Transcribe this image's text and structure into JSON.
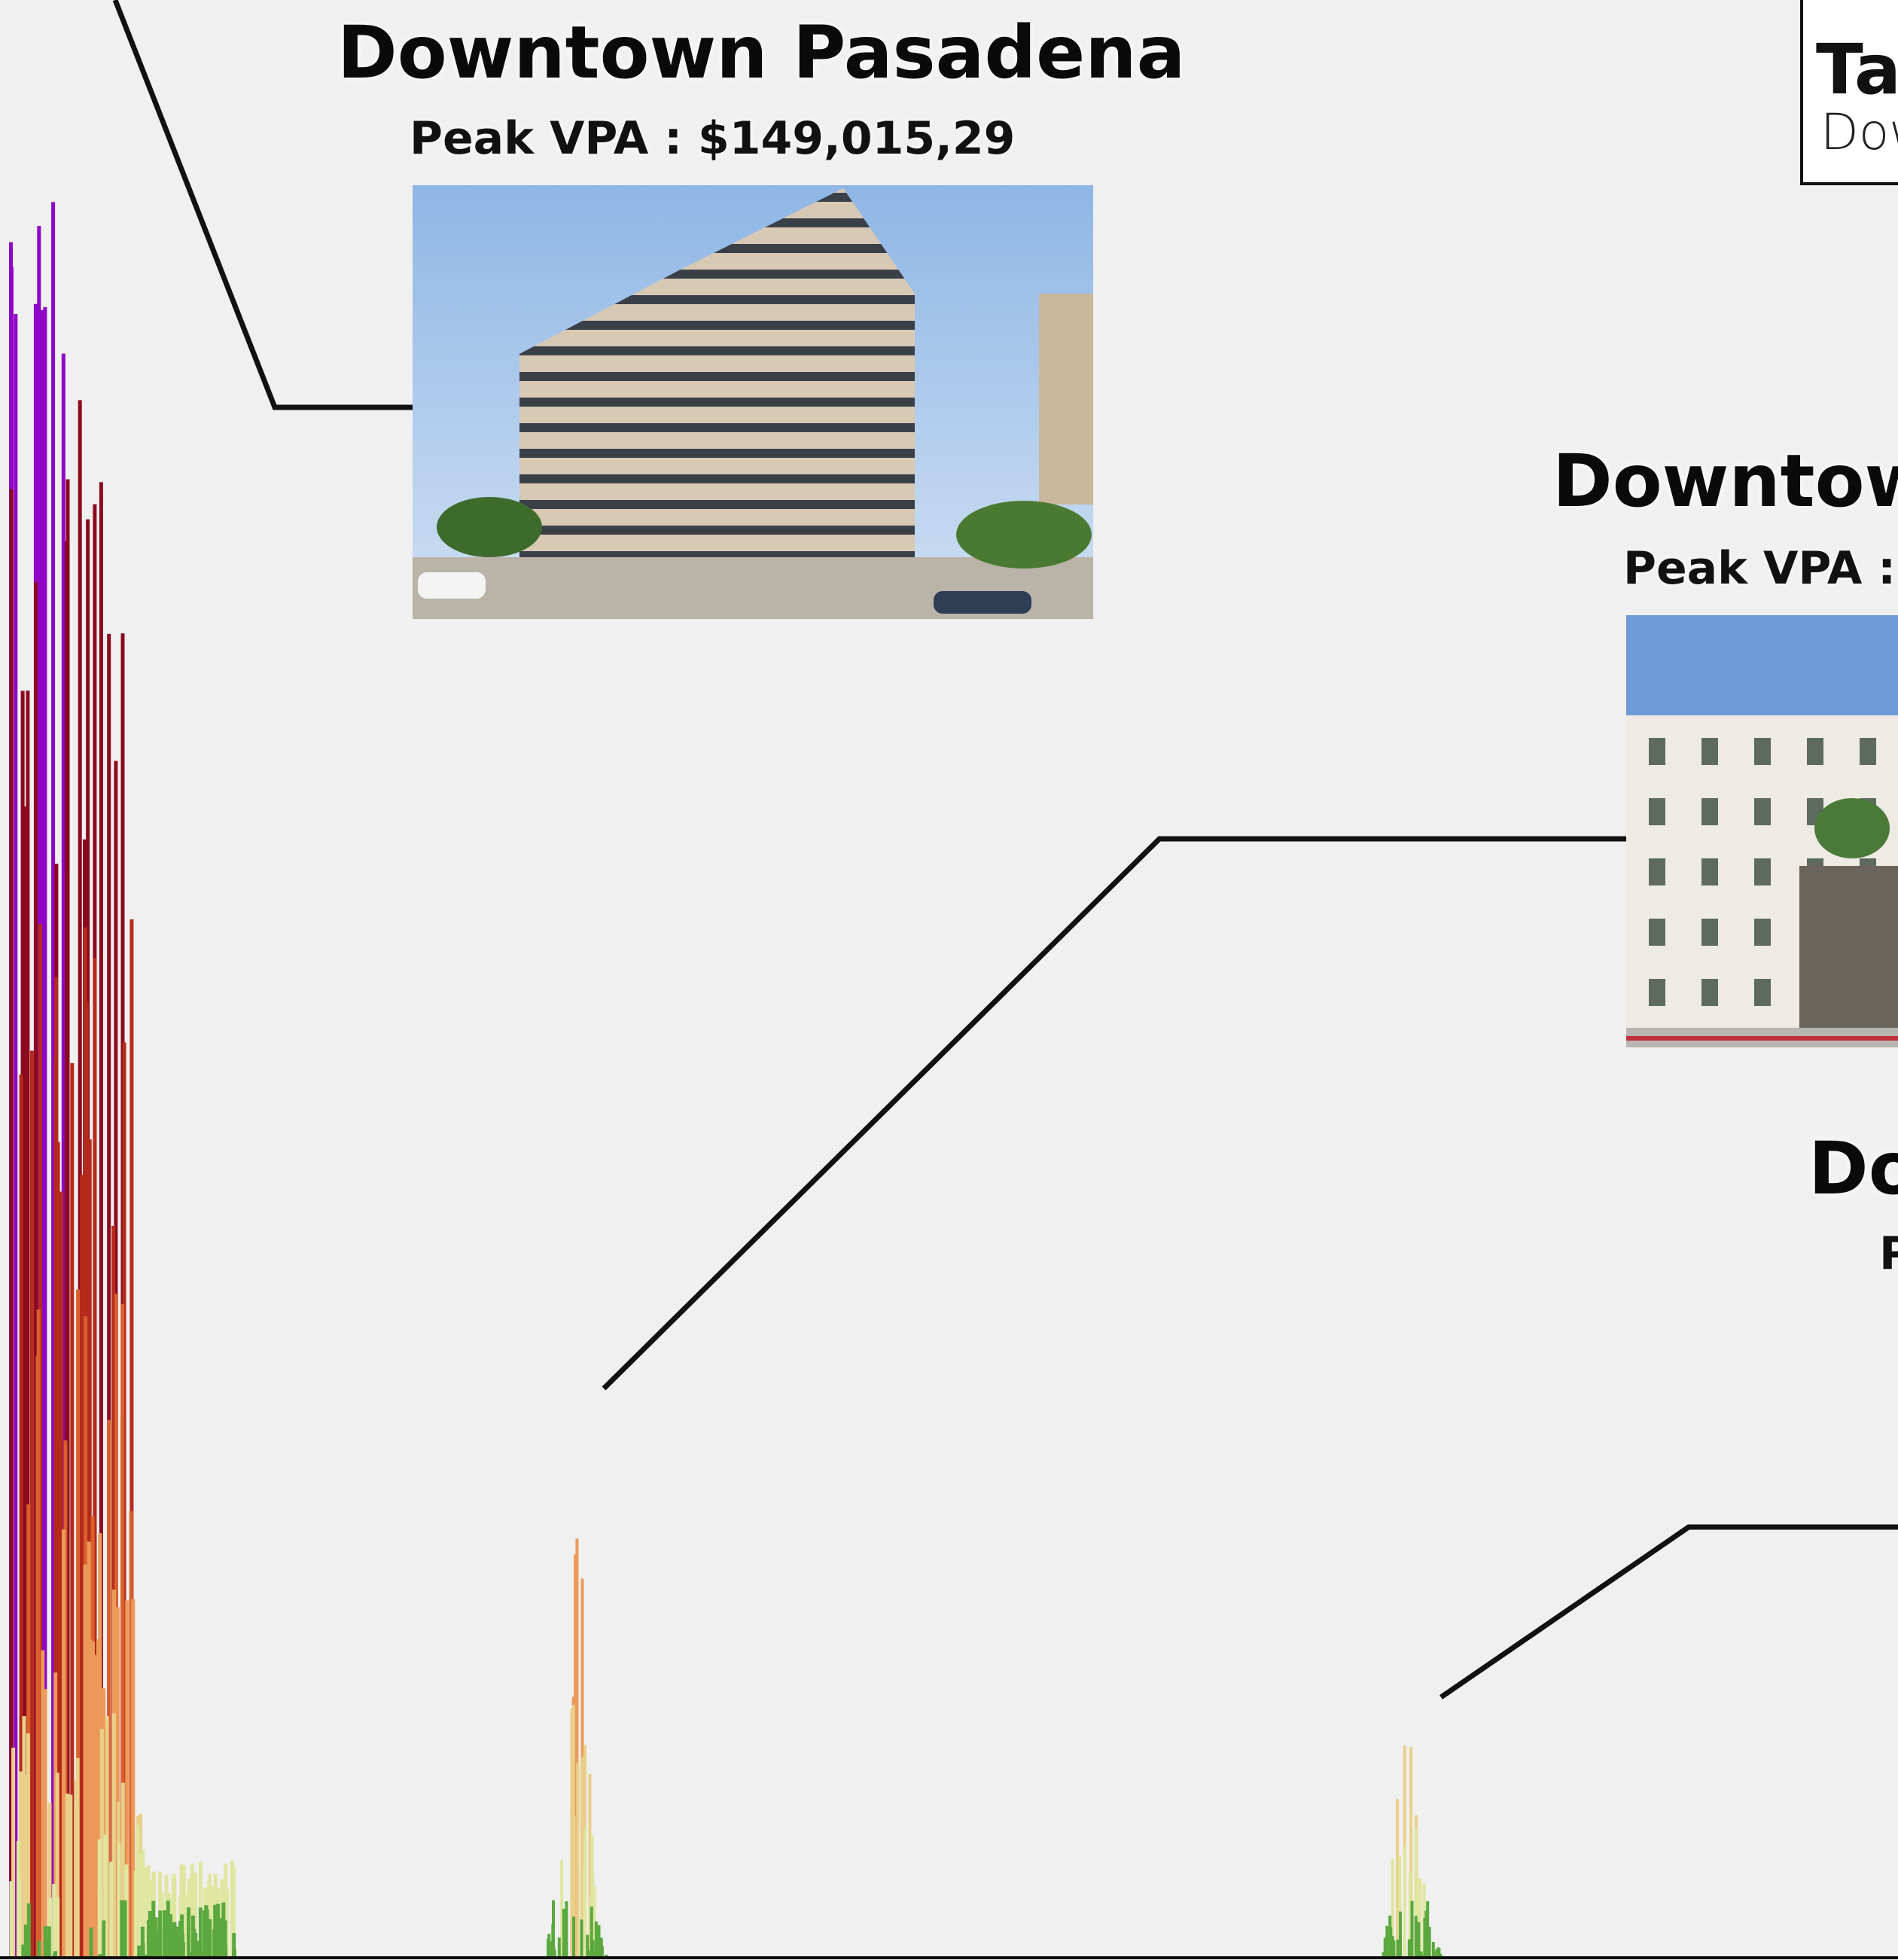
{
  "labels": [
    {
      "title": "Downtown Pasadena",
      "peak": "Peak VPA : $149,015,29"
    },
    {
      "title": "Downtow",
      "peak": "Peak VPA : $"
    },
    {
      "title": "Do",
      "peak": "P"
    }
  ],
  "legend": {
    "title": "Ta",
    "subtitle": "Dow"
  }
}
